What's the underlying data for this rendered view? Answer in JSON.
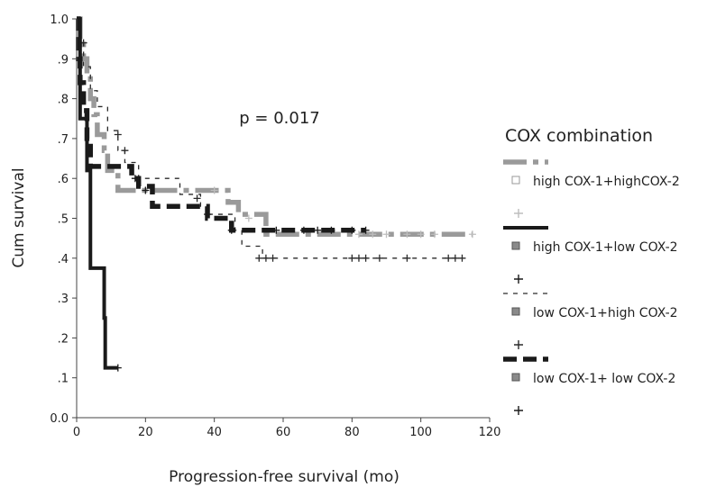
{
  "chart_data": {
    "type": "line",
    "subtype": "kaplan-meier",
    "title": "",
    "xlabel": "Progression-free survival (mo)",
    "ylabel": "Cum survival",
    "xlim": [
      0,
      120
    ],
    "ylim": [
      0,
      1
    ],
    "x_ticks": [
      {
        "value": 0,
        "label": "0"
      },
      {
        "value": 20,
        "label": "20"
      },
      {
        "value": 40,
        "label": "40"
      },
      {
        "value": 60,
        "label": "60"
      },
      {
        "value": 80,
        "label": "80"
      },
      {
        "value": 100,
        "label": "100"
      },
      {
        "value": 120,
        "label": "120"
      }
    ],
    "y_ticks": [
      {
        "value": 0,
        "label": "0.0"
      },
      {
        "value": 0.1,
        "label": ".1"
      },
      {
        "value": 0.2,
        "label": ".2"
      },
      {
        "value": 0.3,
        "label": ".3"
      },
      {
        "value": 0.4,
        "label": ".4"
      },
      {
        "value": 0.5,
        "label": ".5"
      },
      {
        "value": 0.6,
        "label": ".6"
      },
      {
        "value": 0.7,
        "label": ".7"
      },
      {
        "value": 0.8,
        "label": ".8"
      },
      {
        "value": 0.9,
        "label": ".9"
      },
      {
        "value": 1.0,
        "label": "1.0"
      }
    ],
    "grid": false,
    "annotation": "p = 0.017",
    "legend": {
      "title": "COX combination",
      "position": "right"
    },
    "series": [
      {
        "name": "high COX-1+highCOX-2",
        "color": "#9a9a9a",
        "censor_color": "#bdbdbd",
        "style": "dashdot-thick",
        "steps": [
          [
            0,
            1.0
          ],
          [
            1,
            0.95
          ],
          [
            2,
            0.9
          ],
          [
            3,
            0.85
          ],
          [
            4,
            0.8
          ],
          [
            5,
            0.76
          ],
          [
            6,
            0.71
          ],
          [
            8,
            0.67
          ],
          [
            9,
            0.62
          ],
          [
            12,
            0.57
          ],
          [
            22,
            0.57
          ],
          [
            44,
            0.54
          ],
          [
            47,
            0.51
          ],
          [
            55,
            0.46
          ],
          [
            115,
            0.46
          ]
        ],
        "censored": [
          [
            40,
            0.57
          ],
          [
            50,
            0.5
          ],
          [
            82,
            0.46
          ],
          [
            86,
            0.46
          ],
          [
            90,
            0.46
          ],
          [
            96,
            0.46
          ],
          [
            100,
            0.46
          ],
          [
            104,
            0.46
          ],
          [
            115,
            0.46
          ]
        ]
      },
      {
        "name": "high COX-1+low COX-2",
        "color": "#1a1a1a",
        "censor_color": "#1a1a1a",
        "style": "solid-thick",
        "steps": [
          [
            0,
            1.0
          ],
          [
            1,
            0.75
          ],
          [
            3,
            0.62
          ],
          [
            4,
            0.375
          ],
          [
            8,
            0.25
          ],
          [
            8.3,
            0.125
          ],
          [
            12,
            0.125
          ]
        ],
        "censored": [
          [
            12,
            0.125
          ]
        ]
      },
      {
        "name": "low COX-1+high COX-2",
        "color": "#2a2a2a",
        "censor_color": "#2a2a2a",
        "style": "dashed-thin",
        "steps": [
          [
            0,
            1.0
          ],
          [
            1,
            0.94
          ],
          [
            2,
            0.88
          ],
          [
            4,
            0.82
          ],
          [
            6,
            0.78
          ],
          [
            9,
            0.72
          ],
          [
            12,
            0.67
          ],
          [
            14,
            0.64
          ],
          [
            18,
            0.6
          ],
          [
            30,
            0.56
          ],
          [
            36,
            0.53
          ],
          [
            38,
            0.51
          ],
          [
            46,
            0.47
          ],
          [
            48,
            0.43
          ],
          [
            54,
            0.4
          ],
          [
            112,
            0.4
          ]
        ],
        "censored": [
          [
            2,
            0.94
          ],
          [
            12,
            0.71
          ],
          [
            14,
            0.67
          ],
          [
            35,
            0.55
          ],
          [
            38,
            0.51
          ],
          [
            53,
            0.4
          ],
          [
            55,
            0.4
          ],
          [
            57,
            0.4
          ],
          [
            80,
            0.4
          ],
          [
            82,
            0.4
          ],
          [
            84,
            0.4
          ],
          [
            88,
            0.4
          ],
          [
            96,
            0.4
          ],
          [
            108,
            0.4
          ],
          [
            110,
            0.4
          ],
          [
            112,
            0.4
          ]
        ]
      },
      {
        "name": "low COX-1+ low COX-2",
        "color": "#1a1a1a",
        "censor_color": "#1a1a1a",
        "style": "dashed-thick",
        "steps": [
          [
            0,
            1.0
          ],
          [
            0.5,
            0.9
          ],
          [
            1,
            0.84
          ],
          [
            2,
            0.77
          ],
          [
            3,
            0.7
          ],
          [
            4,
            0.63
          ],
          [
            16,
            0.6
          ],
          [
            18,
            0.58
          ],
          [
            22,
            0.53
          ],
          [
            35,
            0.53
          ],
          [
            38,
            0.5
          ],
          [
            45,
            0.47
          ],
          [
            84,
            0.47
          ]
        ],
        "censored": [
          [
            17,
            0.6
          ],
          [
            20,
            0.57
          ],
          [
            45,
            0.47
          ],
          [
            58,
            0.47
          ],
          [
            66,
            0.47
          ],
          [
            70,
            0.47
          ],
          [
            74,
            0.47
          ],
          [
            80,
            0.47
          ],
          [
            84,
            0.47
          ]
        ]
      }
    ]
  }
}
